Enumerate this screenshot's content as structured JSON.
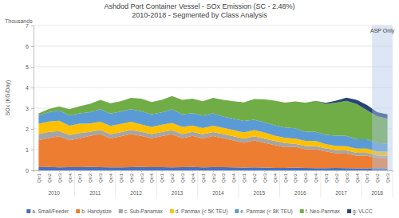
{
  "chart_data": {
    "type": "area",
    "title": "Ashdod Port Container Vessel - SOx Emission (SC - 2.48%)",
    "subtitle": "2010-2018 - Segmented by Class Analysis",
    "y_label": "SOx (KG/Day)",
    "y_unit_label": "Thousands",
    "categories": [
      "Qtr1",
      "Qtr2",
      "Qtr3",
      "Qtr4",
      "Qtr1",
      "Qtr2",
      "Qtr3",
      "Qtr4",
      "Qtr1",
      "Qtr2",
      "Qtr3",
      "Qtr4",
      "Qtr1",
      "Qtr2",
      "Qtr3",
      "Qtr4",
      "Qtr1",
      "Qtr2",
      "Qtr3",
      "Qtr4",
      "Qtr1",
      "Qtr2",
      "Qtr3",
      "Qtr4",
      "Qtr1",
      "Qtr2",
      "Qtr3",
      "Qtr4",
      "Qtr1",
      "Qtr2",
      "Qtr3",
      "Qtr4",
      "Qtr1",
      "Qtr2",
      "Qtr3"
    ],
    "years": [
      "2010",
      "2011",
      "2012",
      "2013",
      "2014",
      "2015",
      "2016",
      "2017",
      "2018"
    ],
    "series": [
      {
        "name": "a. Small/Feeder",
        "color": "#4472c4",
        "values": [
          0.15,
          0.16,
          0.14,
          0.15,
          0.15,
          0.16,
          0.15,
          0.14,
          0.14,
          0.15,
          0.16,
          0.15,
          0.15,
          0.14,
          0.15,
          0.16,
          0.14,
          0.15,
          0.15,
          0.14,
          0.13,
          0.14,
          0.13,
          0.12,
          0.12,
          0.13,
          0.12,
          0.11,
          0.11,
          0.12,
          0.11,
          0.1,
          0.1,
          0.11,
          0.1
        ]
      },
      {
        "name": "b. Handysize",
        "color": "#ed7d31",
        "values": [
          1.3,
          1.4,
          1.5,
          1.3,
          1.4,
          1.5,
          1.6,
          1.4,
          1.5,
          1.6,
          1.5,
          1.4,
          1.5,
          1.6,
          1.4,
          1.5,
          1.4,
          1.5,
          1.4,
          1.3,
          1.2,
          1.3,
          1.2,
          1.1,
          1.0,
          1.0,
          0.9,
          0.9,
          0.8,
          0.7,
          0.7,
          0.6,
          0.6,
          0.5,
          0.5
        ]
      },
      {
        "name": "c. Sub-Panamax",
        "color": "#a5a5a5",
        "values": [
          0.3,
          0.3,
          0.25,
          0.25,
          0.25,
          0.2,
          0.2,
          0.2,
          0.2,
          0.2,
          0.2,
          0.2,
          0.2,
          0.2,
          0.2,
          0.2,
          0.2,
          0.2,
          0.2,
          0.2,
          0.2,
          0.2,
          0.2,
          0.2,
          0.2,
          0.15,
          0.15,
          0.15,
          0.15,
          0.15,
          0.15,
          0.15,
          0.15,
          0.1,
          0.1
        ]
      },
      {
        "name": "d. Panmax (< 5K TEU)",
        "color": "#ffc000",
        "values": [
          0.5,
          0.5,
          0.5,
          0.45,
          0.45,
          0.4,
          0.4,
          0.4,
          0.4,
          0.4,
          0.35,
          0.35,
          0.35,
          0.35,
          0.35,
          0.3,
          0.3,
          0.3,
          0.3,
          0.3,
          0.3,
          0.3,
          0.3,
          0.25,
          0.25,
          0.25,
          0.25,
          0.25,
          0.2,
          0.2,
          0.2,
          0.2,
          0.2,
          0.2,
          0.2
        ]
      },
      {
        "name": "e. Panmax (< 8K TEU)",
        "color": "#5b9bd5",
        "values": [
          0.4,
          0.45,
          0.5,
          0.5,
          0.5,
          0.55,
          0.6,
          0.6,
          0.6,
          0.6,
          0.65,
          0.6,
          0.6,
          0.65,
          0.6,
          0.6,
          0.6,
          0.6,
          0.55,
          0.55,
          0.55,
          0.5,
          0.5,
          0.5,
          0.5,
          0.5,
          0.45,
          0.45,
          0.45,
          0.5,
          0.5,
          0.45,
          0.45,
          0.4,
          0.4
        ]
      },
      {
        "name": "f. Neo-Panmax",
        "color": "#70ad47",
        "values": [
          0.1,
          0.15,
          0.2,
          0.3,
          0.35,
          0.4,
          0.45,
          0.5,
          0.5,
          0.55,
          0.6,
          0.6,
          0.6,
          0.65,
          0.7,
          0.7,
          0.7,
          0.75,
          0.8,
          0.85,
          0.9,
          1.0,
          1.1,
          1.2,
          1.2,
          1.3,
          1.4,
          1.5,
          1.5,
          1.6,
          1.7,
          1.7,
          1.4,
          1.3,
          1.2
        ]
      },
      {
        "name": "g. VLCC",
        "color": "#264478",
        "values": [
          0,
          0,
          0,
          0,
          0,
          0,
          0,
          0,
          0,
          0,
          0,
          0,
          0,
          0,
          0,
          0,
          0,
          0,
          0,
          0,
          0,
          0,
          0,
          0,
          0,
          0,
          0,
          0,
          0.05,
          0.1,
          0.15,
          0.2,
          0.25,
          0.2,
          0.2
        ]
      }
    ],
    "annotations": [
      {
        "text": "ASP Only",
        "start": 33,
        "end": 34
      }
    ],
    "ylim": [
      0,
      7
    ],
    "yticks": [
      0,
      1,
      2,
      3,
      4,
      5,
      6,
      7
    ],
    "stacked": true,
    "grid": true,
    "legend": "bottom"
  }
}
